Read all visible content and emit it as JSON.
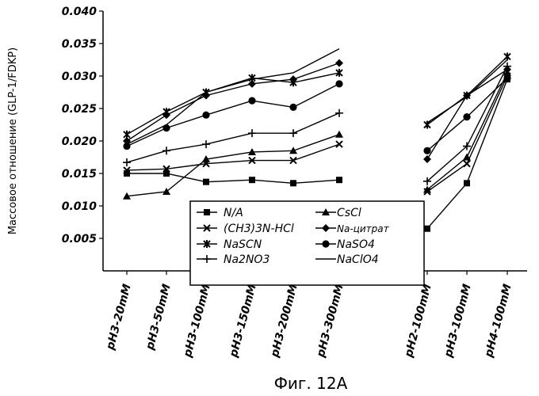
{
  "chart_data": {
    "type": "line",
    "ylabel": "Массовое отношение (GLP-1/FDKP)",
    "caption": "Фиг. 12А",
    "ylim": [
      0,
      0.04
    ],
    "yticks": [
      "0.005",
      "0.010",
      "0.015",
      "0.020",
      "0.025",
      "0.030",
      "0.035",
      "0.040"
    ],
    "categories": [
      "pH3-20mM",
      "pH3-50mM",
      "pH3-100mM",
      "pH3-150mM",
      "pH3-200mM",
      "pH3-300mM",
      "pH2-100mM",
      "pH3-100mM",
      "pH4-100mM"
    ],
    "segments": [
      [
        0,
        5
      ],
      [
        6,
        8
      ]
    ],
    "legend_placement": "bottom-center",
    "series": [
      {
        "name": "N/A",
        "marker": "square",
        "values": [
          0.015,
          0.015,
          0.0137,
          0.014,
          0.0135,
          0.014,
          0.0065,
          0.0135,
          0.0295
        ]
      },
      {
        "name": "(CH3)3N-HCl",
        "marker": "x",
        "values": [
          0.0155,
          0.0157,
          0.0165,
          0.017,
          0.017,
          0.0195,
          0.0122,
          0.0165,
          0.03
        ]
      },
      {
        "name": "NaSCN",
        "marker": "star",
        "values": [
          0.021,
          0.0245,
          0.0275,
          0.0297,
          0.029,
          0.0305,
          0.0225,
          0.027,
          0.033
        ]
      },
      {
        "name": "Na2NO3",
        "marker": "plus",
        "values": [
          0.0167,
          0.0185,
          0.0195,
          0.0212,
          0.0212,
          0.0243,
          0.0138,
          0.0192,
          0.0315
        ]
      },
      {
        "name": "CsCl",
        "marker": "triangle",
        "values": [
          0.0115,
          0.0122,
          0.0172,
          0.0183,
          0.0185,
          0.021,
          0.0125,
          0.0175,
          0.0305
        ]
      },
      {
        "name": "Na-цитрат",
        "marker": "diamond",
        "values": [
          0.02,
          0.024,
          0.027,
          0.0288,
          0.0295,
          0.032,
          0.0172,
          0.027,
          0.031
        ]
      },
      {
        "name": "NaSO4",
        "marker": "circle",
        "values": [
          0.0192,
          0.022,
          0.024,
          0.0262,
          0.0252,
          0.0288,
          0.0185,
          0.0237,
          0.0297
        ]
      },
      {
        "name": "NaClO4",
        "marker": "none",
        "values": [
          0.0195,
          0.0225,
          0.0275,
          0.0295,
          0.0305,
          0.0342,
          0.0228,
          0.0268,
          0.0325
        ]
      }
    ]
  }
}
